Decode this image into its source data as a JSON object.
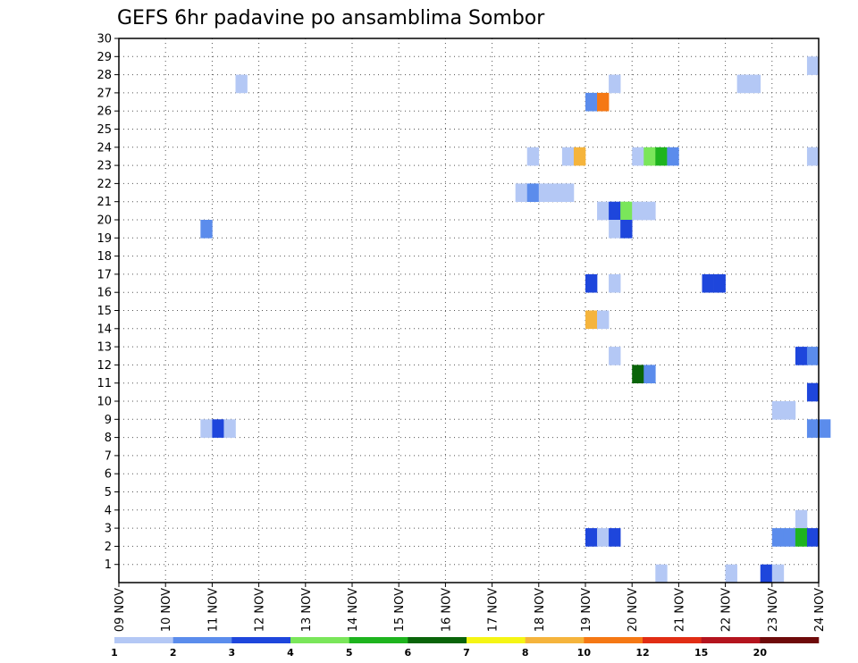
{
  "chart_data": {
    "type": "heatmap",
    "title": "GEFS 6hr padavine po ansamblima Sombor",
    "xlabel": "",
    "ylabel": "",
    "x_ticks": [
      "09 NOV",
      "10 NOV",
      "11 NOV",
      "12 NOV",
      "13 NOV",
      "14 NOV",
      "15 NOV",
      "16 NOV",
      "17 NOV",
      "18 NOV",
      "19 NOV",
      "20 NOV",
      "21 NOV",
      "22 NOV",
      "23 NOV",
      "24 NOV"
    ],
    "y_ticks": [
      "1",
      "2",
      "3",
      "4",
      "5",
      "6",
      "7",
      "8",
      "9",
      "10",
      "11",
      "12",
      "13",
      "14",
      "15",
      "16",
      "17",
      "18",
      "19",
      "20",
      "21",
      "22",
      "23",
      "24",
      "25",
      "26",
      "27",
      "28",
      "29",
      "30"
    ],
    "y_range": [
      0,
      30
    ],
    "grid": true,
    "colorbar": {
      "labels": [
        "1",
        "2",
        "3",
        "4",
        "5",
        "6",
        "7",
        "8",
        "10",
        "12",
        "15",
        "20"
      ],
      "colors": [
        "#b4c8f5",
        "#5b8cec",
        "#1e46dc",
        "#7ae65a",
        "#1eb41e",
        "#0a640a",
        "#f5f514",
        "#f5b43c",
        "#f57814",
        "#e12d14",
        "#b4141e",
        "#6e0a0a"
      ]
    },
    "cells": [
      {
        "time": "23 NOV 18Z",
        "member": 29,
        "color": "#b4c8f5"
      },
      {
        "time": "11 NOV 12Z",
        "member": 28,
        "color": "#b4c8f5"
      },
      {
        "time": "19 NOV 12Z",
        "member": 28,
        "color": "#b4c8f5"
      },
      {
        "time": "22 NOV 06Z",
        "member": 28,
        "color": "#b4c8f5"
      },
      {
        "time": "22 NOV 12Z",
        "member": 28,
        "color": "#b4c8f5"
      },
      {
        "time": "19 NOV 00Z",
        "member": 27,
        "color": "#5b8cec"
      },
      {
        "time": "19 NOV 06Z",
        "member": 27,
        "color": "#f57814"
      },
      {
        "time": "17 NOV 18Z",
        "member": 24,
        "color": "#b4c8f5"
      },
      {
        "time": "18 NOV 12Z",
        "member": 24,
        "color": "#b4c8f5"
      },
      {
        "time": "18 NOV 18Z",
        "member": 24,
        "color": "#f5b43c"
      },
      {
        "time": "20 NOV 00Z",
        "member": 24,
        "color": "#b4c8f5"
      },
      {
        "time": "20 NOV 06Z",
        "member": 24,
        "color": "#7ae65a"
      },
      {
        "time": "20 NOV 12Z",
        "member": 24,
        "color": "#1eb41e"
      },
      {
        "time": "20 NOV 18Z",
        "member": 24,
        "color": "#5b8cec"
      },
      {
        "time": "23 NOV 18Z",
        "member": 24,
        "color": "#b4c8f5"
      },
      {
        "time": "17 NOV 12Z",
        "member": 22,
        "color": "#b4c8f5"
      },
      {
        "time": "17 NOV 18Z",
        "member": 22,
        "color": "#5b8cec"
      },
      {
        "time": "18 NOV 00Z",
        "member": 22,
        "color": "#b4c8f5"
      },
      {
        "time": "18 NOV 06Z",
        "member": 22,
        "color": "#b4c8f5"
      },
      {
        "time": "18 NOV 12Z",
        "member": 22,
        "color": "#b4c8f5"
      },
      {
        "time": "19 NOV 06Z",
        "member": 21,
        "color": "#b4c8f5"
      },
      {
        "time": "19 NOV 12Z",
        "member": 21,
        "color": "#1e46dc"
      },
      {
        "time": "19 NOV 18Z",
        "member": 21,
        "color": "#7ae65a"
      },
      {
        "time": "20 NOV 00Z",
        "member": 21,
        "color": "#b4c8f5"
      },
      {
        "time": "20 NOV 06Z",
        "member": 21,
        "color": "#b4c8f5"
      },
      {
        "time": "10 NOV 18Z",
        "member": 20,
        "color": "#5b8cec"
      },
      {
        "time": "19 NOV 12Z",
        "member": 20,
        "color": "#b4c8f5"
      },
      {
        "time": "19 NOV 18Z",
        "member": 20,
        "color": "#1e46dc"
      },
      {
        "time": "19 NOV 00Z",
        "member": 17,
        "color": "#1e46dc"
      },
      {
        "time": "19 NOV 12Z",
        "member": 17,
        "color": "#b4c8f5"
      },
      {
        "time": "21 NOV 12Z",
        "member": 17,
        "color": "#1e46dc"
      },
      {
        "time": "21 NOV 18Z",
        "member": 17,
        "color": "#1e46dc"
      },
      {
        "time": "19 NOV 00Z",
        "member": 15,
        "color": "#f5b43c"
      },
      {
        "time": "19 NOV 06Z",
        "member": 15,
        "color": "#b4c8f5"
      },
      {
        "time": "19 NOV 12Z",
        "member": 13,
        "color": "#b4c8f5"
      },
      {
        "time": "23 NOV 12Z",
        "member": 13,
        "color": "#1e46dc"
      },
      {
        "time": "23 NOV 18Z",
        "member": 13,
        "color": "#5b8cec"
      },
      {
        "time": "20 NOV 00Z",
        "member": 12,
        "color": "#0a640a"
      },
      {
        "time": "20 NOV 06Z",
        "member": 12,
        "color": "#5b8cec"
      },
      {
        "time": "23 NOV 18Z",
        "member": 11,
        "color": "#1e46dc"
      },
      {
        "time": "23 NOV 00Z",
        "member": 10,
        "color": "#b4c8f5"
      },
      {
        "time": "23 NOV 06Z",
        "member": 10,
        "color": "#b4c8f5"
      },
      {
        "time": "10 NOV 18Z",
        "member": 9,
        "color": "#b4c8f5"
      },
      {
        "time": "11 NOV 00Z",
        "member": 9,
        "color": "#1e46dc"
      },
      {
        "time": "11 NOV 06Z",
        "member": 9,
        "color": "#b4c8f5"
      },
      {
        "time": "23 NOV 18Z",
        "member": 9,
        "color": "#5b8cec"
      },
      {
        "time": "24 NOV 00Z",
        "member": 9,
        "color": "#5b8cec"
      },
      {
        "time": "23 NOV 12Z",
        "member": 4,
        "color": "#b4c8f5"
      },
      {
        "time": "19 NOV 00Z",
        "member": 3,
        "color": "#1e46dc"
      },
      {
        "time": "19 NOV 06Z",
        "member": 3,
        "color": "#b4c8f5"
      },
      {
        "time": "19 NOV 12Z",
        "member": 3,
        "color": "#1e46dc"
      },
      {
        "time": "23 NOV 00Z",
        "member": 3,
        "color": "#5b8cec"
      },
      {
        "time": "23 NOV 06Z",
        "member": 3,
        "color": "#5b8cec"
      },
      {
        "time": "23 NOV 12Z",
        "member": 3,
        "color": "#1eb41e"
      },
      {
        "time": "23 NOV 18Z",
        "member": 3,
        "color": "#1e46dc"
      },
      {
        "time": "20 NOV 12Z",
        "member": 1,
        "color": "#b4c8f5"
      },
      {
        "time": "22 NOV 00Z",
        "member": 1,
        "color": "#b4c8f5"
      },
      {
        "time": "22 NOV 18Z",
        "member": 1,
        "color": "#1e46dc"
      },
      {
        "time": "23 NOV 00Z",
        "member": 1,
        "color": "#b4c8f5"
      }
    ]
  }
}
